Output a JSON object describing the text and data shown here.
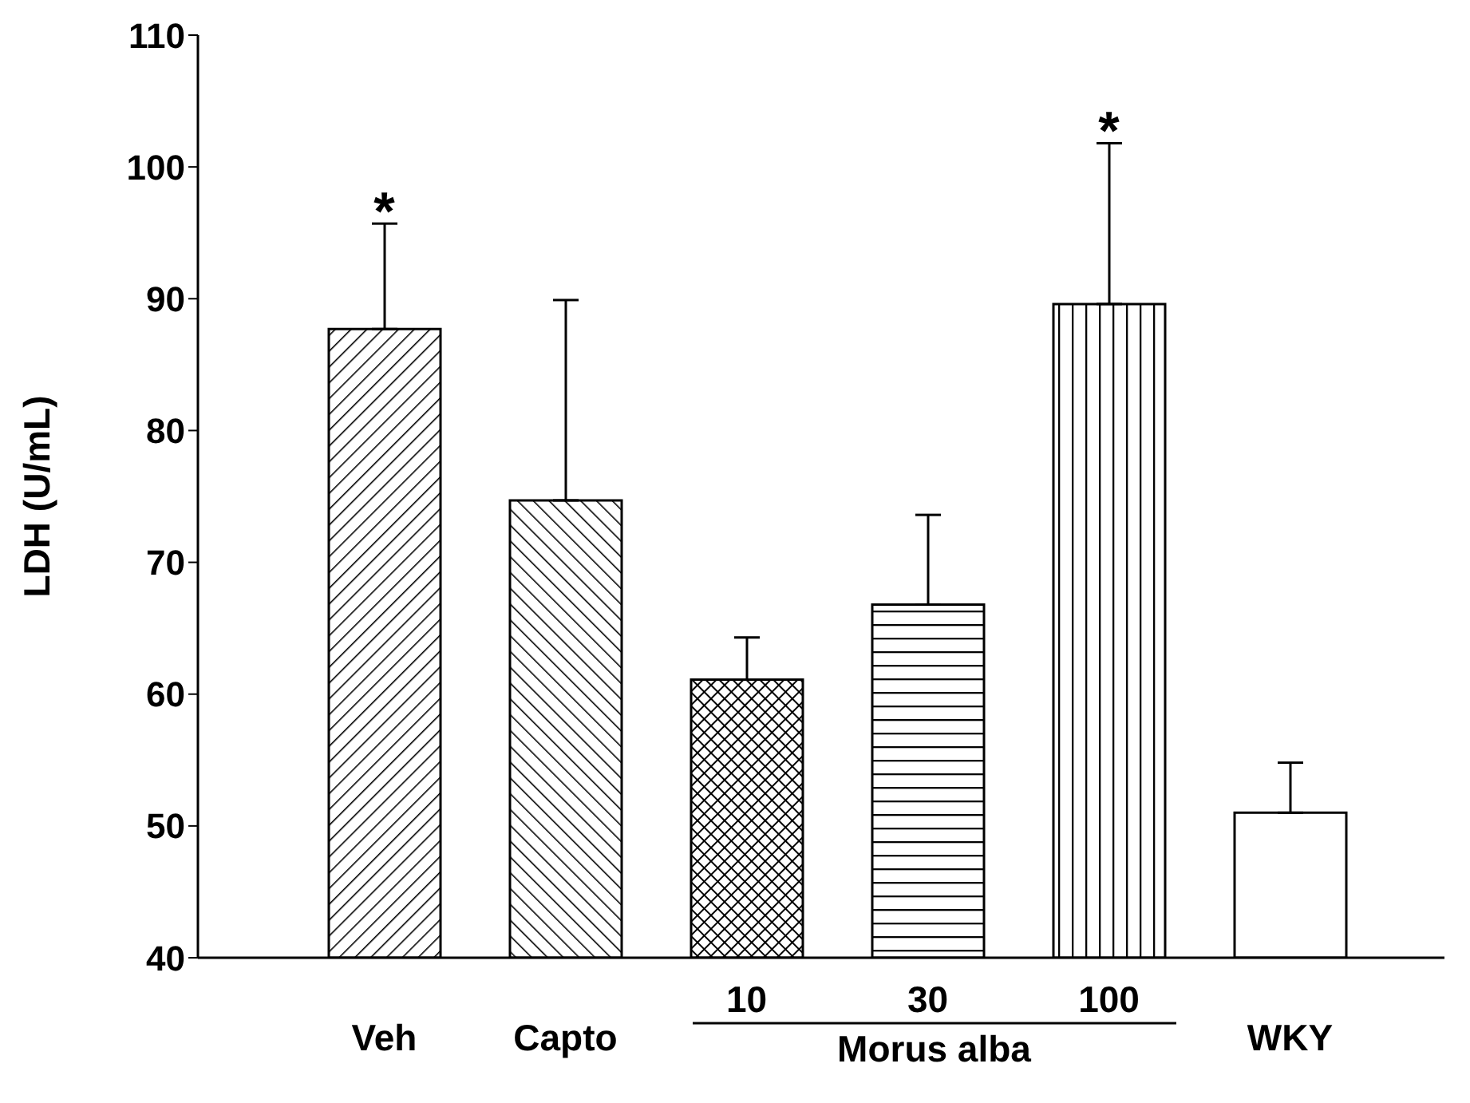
{
  "chart_data": {
    "type": "bar",
    "ylabel": "LDH (U/mL)",
    "xlabel": "Morus alba",
    "categories": [
      "Veh",
      "Capto",
      "10",
      "30",
      "100",
      "WKY"
    ],
    "series": [
      {
        "color": "#000000",
        "values": [
          87.7,
          74.7,
          61.1,
          66.8,
          89.6,
          51.0
        ],
        "errors": [
          [
            87.7,
            95.7
          ],
          [
            74.7,
            89.9
          ],
          [
            61.1,
            64.3
          ],
          [
            66.8,
            73.6
          ],
          [
            89.6,
            101.8
          ],
          [
            51.0,
            54.8
          ]
        ]
      }
    ],
    "ylim": [
      40,
      110
    ],
    "yticks": [
      40,
      50,
      60,
      70,
      80,
      90,
      100,
      110
    ],
    "annotations": [
      {
        "text": "*",
        "x": "Veh",
        "y": 95.7
      },
      {
        "text": "*",
        "x": "100",
        "y": 101.8
      }
    ]
  }
}
